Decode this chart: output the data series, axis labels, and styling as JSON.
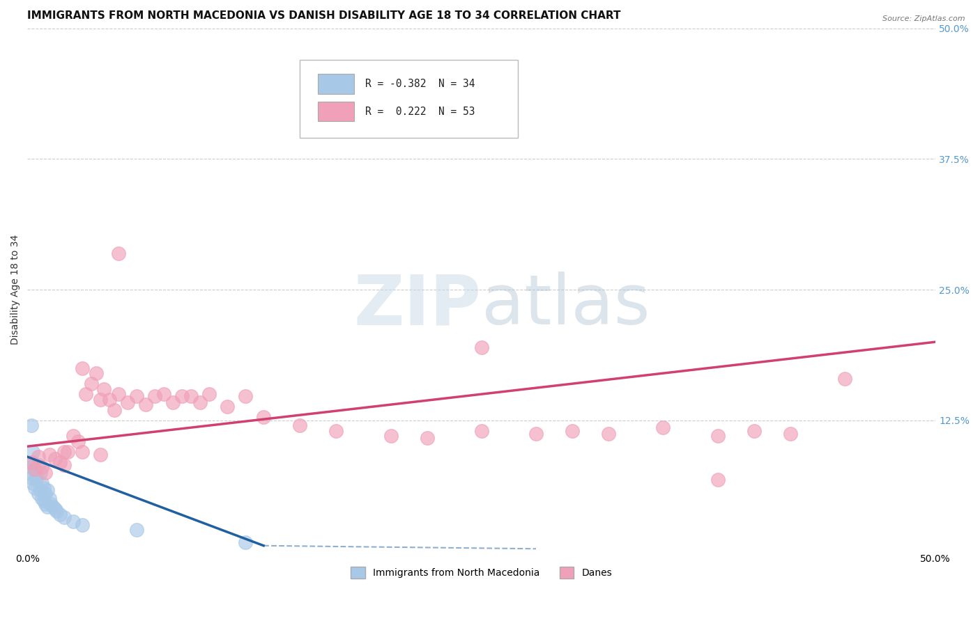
{
  "title": "IMMIGRANTS FROM NORTH MACEDONIA VS DANISH DISABILITY AGE 18 TO 34 CORRELATION CHART",
  "source": "Source: ZipAtlas.com",
  "ylabel": "Disability Age 18 to 34",
  "xlim": [
    0,
    0.5
  ],
  "ylim": [
    0,
    0.5
  ],
  "ytick_positions": [
    0.125,
    0.25,
    0.375,
    0.5
  ],
  "right_ytick_labels": [
    "12.5%",
    "25.0%",
    "37.5%",
    "50.0%"
  ],
  "blue_color": "#a8c8e8",
  "pink_color": "#f0a0b8",
  "blue_line_color": "#2060a0",
  "pink_line_color": "#d04070",
  "blue_scatter_x": [
    0.001,
    0.002,
    0.002,
    0.003,
    0.003,
    0.004,
    0.004,
    0.005,
    0.005,
    0.006,
    0.006,
    0.007,
    0.007,
    0.008,
    0.008,
    0.009,
    0.009,
    0.01,
    0.01,
    0.011,
    0.011,
    0.012,
    0.013,
    0.014,
    0.015,
    0.016,
    0.018,
    0.02,
    0.025,
    0.03,
    0.002,
    0.003,
    0.06,
    0.12
  ],
  "blue_scatter_y": [
    0.075,
    0.08,
    0.07,
    0.085,
    0.065,
    0.078,
    0.06,
    0.072,
    0.068,
    0.082,
    0.055,
    0.075,
    0.058,
    0.065,
    0.05,
    0.06,
    0.048,
    0.055,
    0.045,
    0.058,
    0.042,
    0.05,
    0.045,
    0.042,
    0.04,
    0.038,
    0.035,
    0.032,
    0.028,
    0.025,
    0.12,
    0.095,
    0.02,
    0.008
  ],
  "pink_scatter_x": [
    0.002,
    0.004,
    0.006,
    0.008,
    0.01,
    0.012,
    0.015,
    0.018,
    0.02,
    0.022,
    0.025,
    0.028,
    0.03,
    0.032,
    0.035,
    0.038,
    0.04,
    0.042,
    0.045,
    0.048,
    0.05,
    0.055,
    0.06,
    0.065,
    0.07,
    0.075,
    0.08,
    0.085,
    0.09,
    0.095,
    0.1,
    0.11,
    0.12,
    0.13,
    0.15,
    0.17,
    0.2,
    0.22,
    0.25,
    0.28,
    0.3,
    0.32,
    0.35,
    0.38,
    0.4,
    0.42,
    0.45,
    0.02,
    0.03,
    0.04,
    0.05,
    0.25,
    0.38
  ],
  "pink_scatter_y": [
    0.085,
    0.078,
    0.09,
    0.08,
    0.075,
    0.092,
    0.088,
    0.085,
    0.082,
    0.095,
    0.11,
    0.105,
    0.175,
    0.15,
    0.16,
    0.17,
    0.145,
    0.155,
    0.145,
    0.135,
    0.15,
    0.142,
    0.148,
    0.14,
    0.148,
    0.15,
    0.142,
    0.148,
    0.148,
    0.142,
    0.15,
    0.138,
    0.148,
    0.128,
    0.12,
    0.115,
    0.11,
    0.108,
    0.115,
    0.112,
    0.115,
    0.112,
    0.118,
    0.11,
    0.115,
    0.112,
    0.165,
    0.095,
    0.095,
    0.092,
    0.285,
    0.195,
    0.068
  ],
  "watermark_zip": "ZIP",
  "watermark_atlas": "atlas",
  "background_color": "#ffffff",
  "grid_color": "#cccccc",
  "title_fontsize": 11,
  "axis_fontsize": 10,
  "tick_fontsize": 10
}
